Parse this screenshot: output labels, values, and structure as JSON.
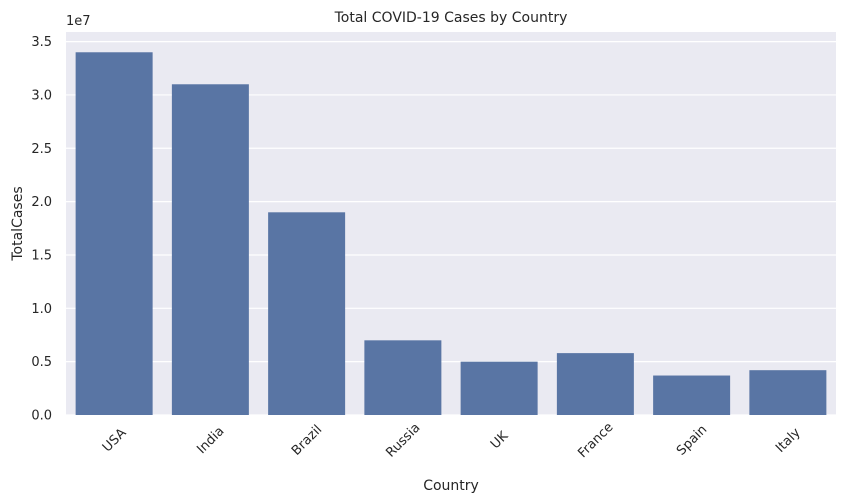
{
  "chart_data": {
    "type": "bar",
    "title": "Total COVID-19 Cases by Country",
    "xlabel": "Country",
    "ylabel": "TotalCases",
    "y_offset_label": "1e7",
    "categories": [
      "USA",
      "India",
      "Brazil",
      "Russia",
      "UK",
      "France",
      "Spain",
      "Italy"
    ],
    "values": [
      34000000,
      31000000,
      19000000,
      7000000,
      5000000,
      5800000,
      3700000,
      4200000
    ],
    "ylim": [
      0,
      35900000
    ],
    "yticks": [
      0,
      5000000,
      10000000,
      15000000,
      20000000,
      25000000,
      30000000,
      35000000
    ],
    "ytick_labels": [
      "0.0",
      "0.5",
      "1.0",
      "1.5",
      "2.0",
      "2.5",
      "3.0",
      "3.5"
    ],
    "grid": true,
    "bar_color": "#5975a4",
    "background_color": "#eaeaf2",
    "grid_color": "#ffffff"
  }
}
